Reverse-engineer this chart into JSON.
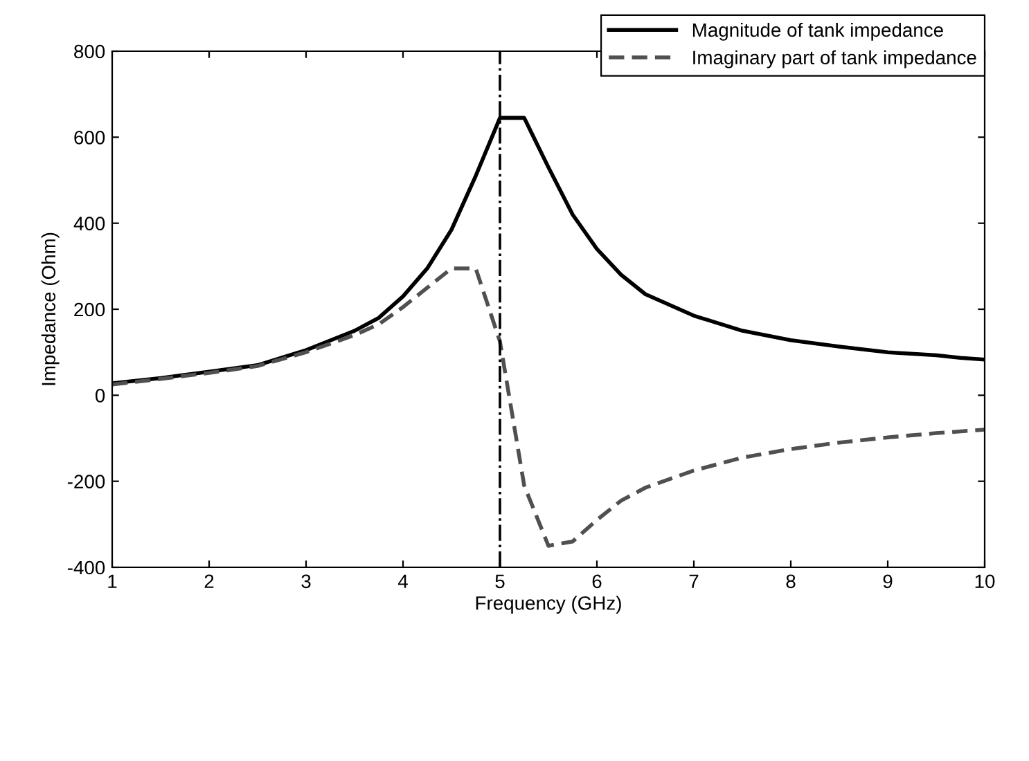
{
  "chart_data": {
    "type": "line",
    "xlabel": "Frequency (GHz)",
    "ylabel": "Impedance (Ohm)",
    "xlim": [
      1,
      10
    ],
    "xticks": [
      1,
      2,
      3,
      4,
      5,
      6,
      7,
      8,
      9,
      10
    ],
    "ylim": [
      -400,
      800
    ],
    "yticks": [
      -400,
      -200,
      0,
      200,
      400,
      600,
      800
    ],
    "grid": false,
    "legend": "top right",
    "marker": "none",
    "series": [
      {
        "name": "Magnitude of tank impedance",
        "color": "#000000",
        "line_style": "solid",
        "x": [
          1,
          1.5,
          2,
          2.5,
          3,
          3.5,
          3.75,
          4,
          4.25,
          4.5,
          4.75,
          5,
          5.25,
          5.5,
          5.75,
          6,
          6.25,
          6.5,
          7,
          7.5,
          8,
          8.5,
          9,
          9.5,
          9.75,
          10
        ],
        "values": [
          28,
          40,
          55,
          70,
          105,
          150,
          180,
          230,
          295,
          385,
          510,
          645,
          645,
          530,
          420,
          340,
          280,
          235,
          185,
          150,
          128,
          113,
          100,
          93,
          87,
          83
        ]
      },
      {
        "name": "Imaginary part of tank impedance",
        "color": "#505050",
        "line_style": "dashed",
        "x": [
          1,
          1.5,
          2,
          2.5,
          3,
          3.5,
          3.75,
          4,
          4.25,
          4.5,
          4.75,
          5,
          5.25,
          5.5,
          5.75,
          6,
          6.25,
          6.5,
          7,
          7.5,
          8,
          8.5,
          9,
          9.5,
          10
        ],
        "values": [
          25,
          38,
          52,
          68,
          100,
          140,
          165,
          205,
          250,
          295,
          295,
          125,
          -210,
          -350,
          -340,
          -290,
          -245,
          -215,
          -175,
          -145,
          -125,
          -110,
          -98,
          -88,
          -80
        ]
      }
    ],
    "ref_lines": [
      {
        "axis": "x",
        "value": 5,
        "color": "#000000",
        "line_style": "dashdot"
      }
    ]
  }
}
